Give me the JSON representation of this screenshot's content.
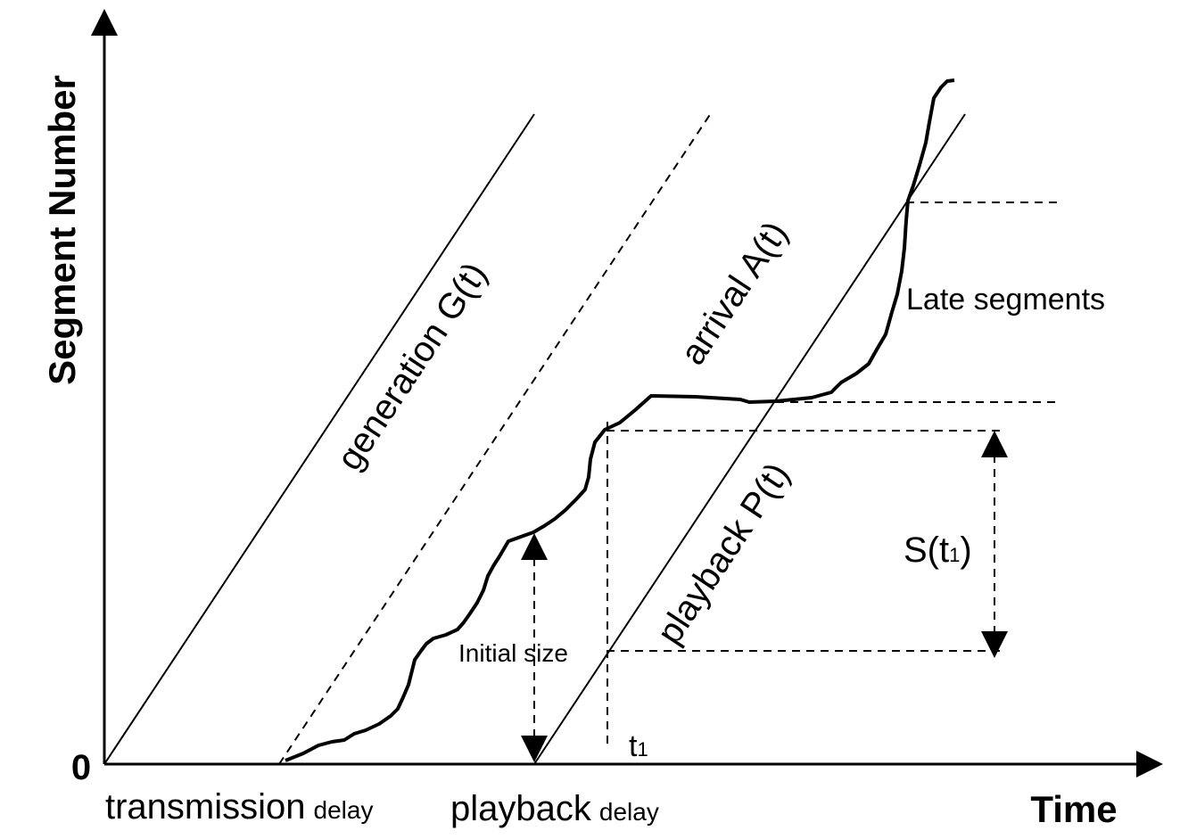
{
  "labels": {
    "y_axis_title": "Segment Number",
    "x_axis_title": "Time",
    "origin": "0",
    "transmission": "transmission",
    "transmission_delay": "delay",
    "playback": "playback",
    "playback_delay": "delay",
    "generation": "generation G(t)",
    "arrival": "arrival A(t)",
    "playback_curve": "playback P(t)",
    "late_segments": "Late segments",
    "initial_size": "Initial size",
    "s_prefix": "S(t",
    "s_sub": "1",
    "s_suffix": ")",
    "t_main": "t",
    "t_sub": "1"
  },
  "colors": {
    "ink": "#000000",
    "background": "#ffffff"
  }
}
